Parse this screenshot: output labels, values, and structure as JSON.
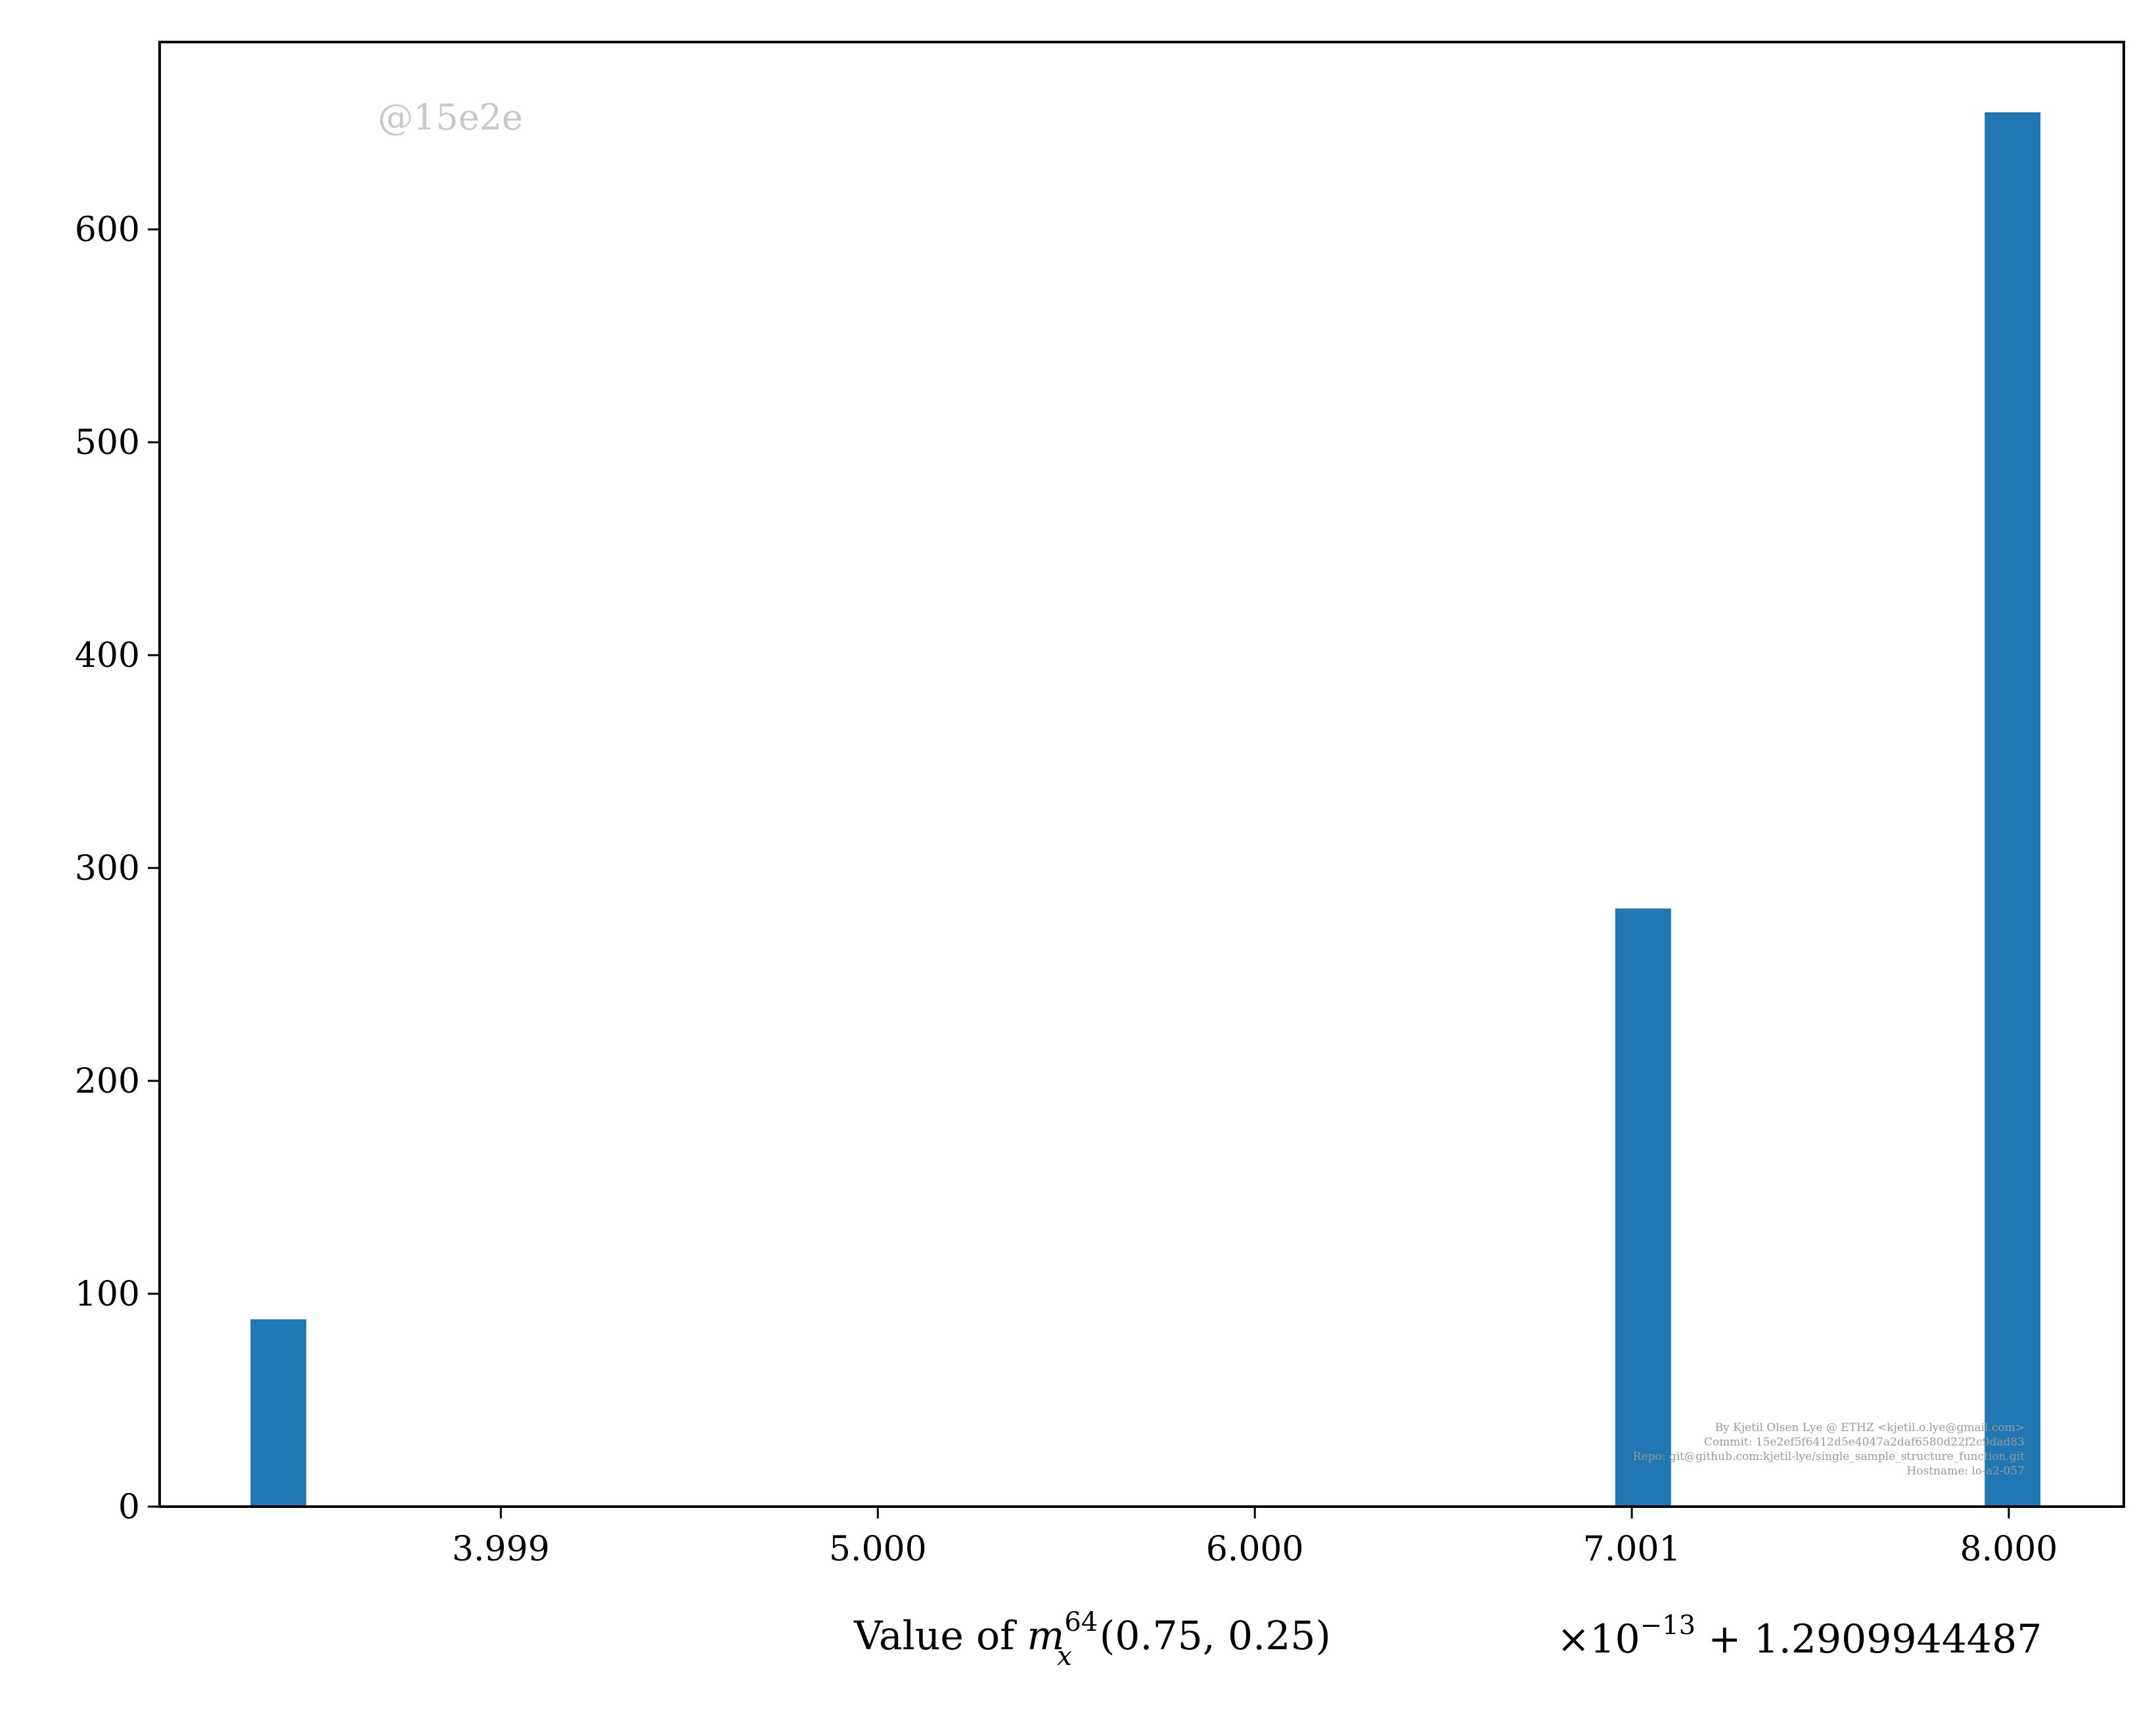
{
  "chart_data": {
    "type": "bar",
    "title": "",
    "xlabel": "Value of m_x^64(0.75, 0.25)",
    "xlabel_parts": {
      "prefix": "Value of ",
      "var": "m",
      "sup": "64",
      "sub": "x",
      "suffix": "(0.75, 0.25)"
    },
    "x_offset_label": {
      "times": "×10",
      "exp": "−13",
      "plus": " + 1.2909944487"
    },
    "ylabel": "",
    "xlim": [
      3.095,
      8.305
    ],
    "ylim": [
      0,
      688
    ],
    "x_ticks": [
      {
        "value": 4.0,
        "label": "3.999"
      },
      {
        "value": 5.0,
        "label": "5.000"
      },
      {
        "value": 6.0,
        "label": "6.000"
      },
      {
        "value": 7.0,
        "label": "7.001"
      },
      {
        "value": 8.0,
        "label": "8.000"
      }
    ],
    "y_ticks": [
      {
        "value": 0,
        "label": "0"
      },
      {
        "value": 100,
        "label": "100"
      },
      {
        "value": 200,
        "label": "200"
      },
      {
        "value": 300,
        "label": "300"
      },
      {
        "value": 400,
        "label": "400"
      },
      {
        "value": 500,
        "label": "500"
      },
      {
        "value": 600,
        "label": "600"
      }
    ],
    "bin_width": 0.148,
    "bars": [
      {
        "x": 3.41,
        "count": 88
      },
      {
        "x": 7.03,
        "count": 281
      },
      {
        "x": 8.01,
        "count": 655
      }
    ],
    "bar_color": "#1f77b4",
    "grid": false,
    "legend": "none"
  },
  "watermark": "@15e2e",
  "footer": [
    "By Kjetil Olsen Lye @ ETHZ <kjetil.o.lye@gmail.com>",
    "Commit: 15e2ef5f6412d5e4047a2daf6580d22f2c9dad83",
    "Repo: git@github.com:kjetil-lye/single_sample_structure_function.git",
    "Hostname: lo-a2-057"
  ]
}
